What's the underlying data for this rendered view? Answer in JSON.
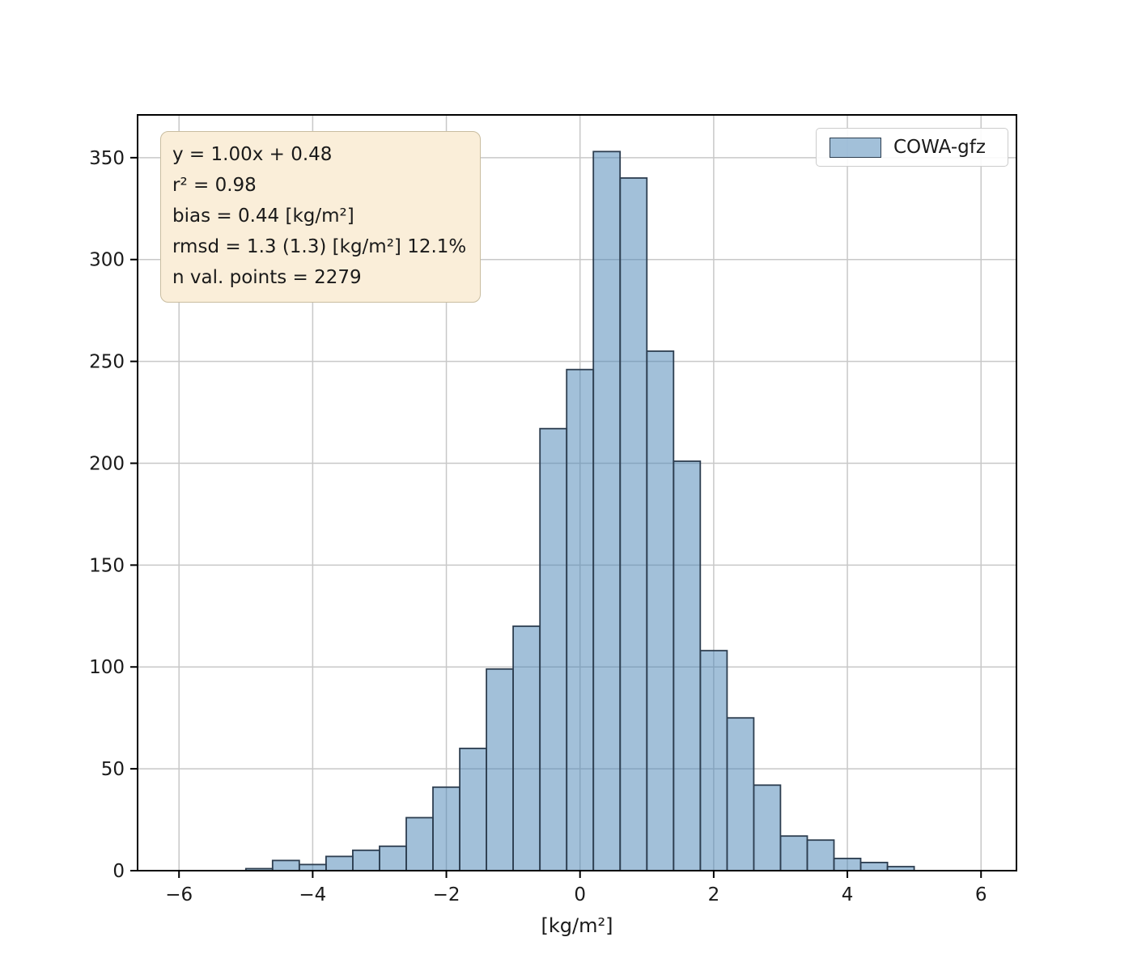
{
  "chart_data": {
    "type": "bar",
    "subtype": "histogram",
    "title": "",
    "xlabel": "[kg/m²]",
    "ylabel": "",
    "xlim": [
      -6.62,
      6.53
    ],
    "ylim": [
      0,
      371
    ],
    "grid": true,
    "legend_position": "upper right",
    "xticks": {
      "values": [
        -6,
        -4,
        -2,
        0,
        2,
        4,
        6
      ],
      "labels": [
        "−6",
        "−4",
        "−2",
        "0",
        "2",
        "4",
        "6"
      ]
    },
    "yticks": {
      "values": [
        0,
        50,
        100,
        150,
        200,
        250,
        300,
        350
      ],
      "labels": [
        "0",
        "50",
        "100",
        "150",
        "200",
        "250",
        "300",
        "350"
      ]
    },
    "bin_start": -5.0,
    "bin_width": 0.4,
    "values": [
      1,
      5,
      3,
      7,
      10,
      12,
      26,
      41,
      60,
      99,
      120,
      217,
      246,
      353,
      340,
      255,
      201,
      108,
      75,
      42,
      17,
      15,
      6,
      4,
      2
    ],
    "series_name": "COWA-gfz",
    "colors": {
      "bar_fill": "rgba(70,130,180,0.5)",
      "bar_edge": "#2d3e50",
      "grid": "#c8c8c8",
      "spine": "#000000",
      "tick_text": "#1a1a1a"
    }
  },
  "legend": {
    "label": "COWA-gfz"
  },
  "annotation": {
    "lines": [
      "y = 1.00x + 0.48",
      "r² = 0.98",
      "bias = 0.44 [kg/m²]",
      "rmsd = 1.3 (1.3) [kg/m²] 12.1%",
      "n val. points = 2279"
    ],
    "background": "#faeed9",
    "border": "#c9bda0"
  }
}
